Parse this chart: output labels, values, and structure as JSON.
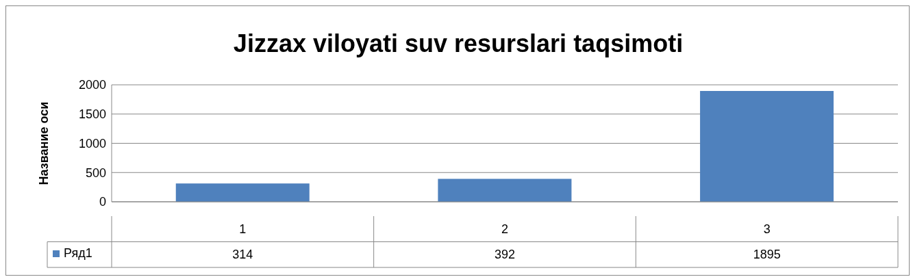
{
  "chart_data": {
    "type": "bar",
    "title": "Jizzax viloyati suv resurslari taqsimoti",
    "ylabel": "Название оси",
    "categories": [
      "1",
      "2",
      "3"
    ],
    "series": [
      {
        "name": "Ряд1",
        "color": "#4f81bd",
        "values": [
          314,
          392,
          1895
        ]
      }
    ],
    "ylim": [
      0,
      2000
    ],
    "yticks": [
      0,
      500,
      1000,
      1500,
      2000
    ],
    "grid": "y",
    "legend": "bottom left",
    "data_labels": true
  }
}
